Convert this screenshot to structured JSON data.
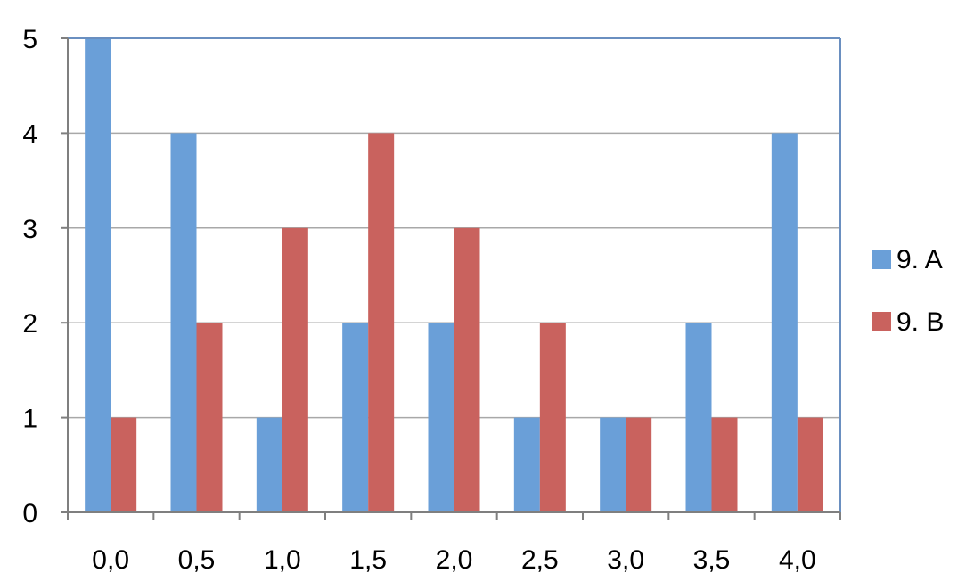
{
  "chart_data": {
    "type": "bar",
    "title": "",
    "xlabel": "",
    "ylabel": "",
    "categories": [
      "0,0",
      "0,5",
      "1,0",
      "1,5",
      "2,0",
      "2,5",
      "3,0",
      "3,5",
      "4,0"
    ],
    "series": [
      {
        "name": "9. A",
        "color": "#6a9fd8",
        "values": [
          5,
          4,
          1,
          2,
          2,
          1,
          1,
          2,
          4
        ]
      },
      {
        "name": "9. B",
        "color": "#c9625e",
        "values": [
          1,
          2,
          3,
          4,
          3,
          2,
          1,
          1,
          1
        ]
      }
    ],
    "ylim": [
      0,
      5
    ],
    "yticks": [
      "0",
      "1",
      "2",
      "3",
      "4",
      "5"
    ],
    "grid": true,
    "legend_position": "right",
    "colors": {
      "plot_border": "#6a8fc0",
      "gridline": "#a8a8a8",
      "axis": "#7f7f7f"
    }
  }
}
